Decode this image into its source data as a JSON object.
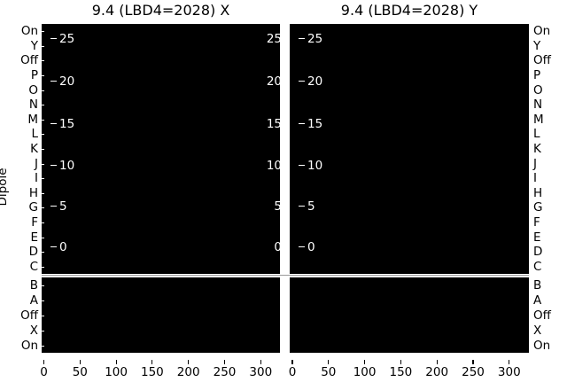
{
  "panels": [
    {
      "title": "9.4 (LBD4=2028) X"
    },
    {
      "title": "9.4 (LBD4=2028) Y"
    }
  ],
  "y_axis": {
    "label": "Dipole",
    "row_labels": [
      "On",
      "Y",
      "Off",
      "P",
      "O",
      "N",
      "M",
      "L",
      "K",
      "J",
      "I",
      "H",
      "G",
      "F",
      "E",
      "D",
      "C",
      "B",
      "A",
      "Off",
      "X",
      "On"
    ],
    "rows_above_divider": 17
  },
  "inner_scale_labels": [
    "25",
    "20",
    "15",
    "10",
    "5",
    "0"
  ],
  "x_axis": {
    "tick_labels": [
      "0",
      "50",
      "100",
      "150",
      "200",
      "250",
      "300"
    ]
  },
  "colors": {
    "figure_bg": "#ffffff",
    "panel_bg": "#000000",
    "outer_text": "#000000",
    "inner_text": "#ffffff",
    "divider_line": "#9a9a9a"
  },
  "chart_data": [
    {
      "type": "heatmap",
      "title": "9.4 (LBD4=2028) X",
      "ylabel": "Dipole",
      "y_categories": [
        "On",
        "Y",
        "Off",
        "P",
        "O",
        "N",
        "M",
        "L",
        "K",
        "J",
        "I",
        "H",
        "G",
        "F",
        "E",
        "D",
        "C",
        "B",
        "A",
        "Off",
        "X",
        "On"
      ],
      "x_tick_values": [
        0,
        50,
        100,
        150,
        200,
        250,
        300
      ],
      "xlim": [
        0,
        328
      ],
      "secondary_y_tick_values": [
        25,
        20,
        15,
        10,
        5,
        0
      ],
      "uniform_cell_value": 0,
      "cell_color": "black (no non-zero data visible)",
      "divider_after_row": "C",
      "legend": "none",
      "grid": false
    },
    {
      "type": "heatmap",
      "title": "9.4 (LBD4=2028) Y",
      "ylabel": "Dipole",
      "y_categories": [
        "On",
        "Y",
        "Off",
        "P",
        "O",
        "N",
        "M",
        "L",
        "K",
        "J",
        "I",
        "H",
        "G",
        "F",
        "E",
        "D",
        "C",
        "B",
        "A",
        "Off",
        "X",
        "On"
      ],
      "x_tick_values": [
        0,
        50,
        100,
        150,
        200,
        250,
        300
      ],
      "xlim": [
        0,
        328
      ],
      "secondary_y_tick_values": [
        25,
        20,
        15,
        10,
        5,
        0
      ],
      "uniform_cell_value": 0,
      "cell_color": "black (no non-zero data visible)",
      "divider_after_row": "C",
      "legend": "none",
      "grid": false
    }
  ]
}
